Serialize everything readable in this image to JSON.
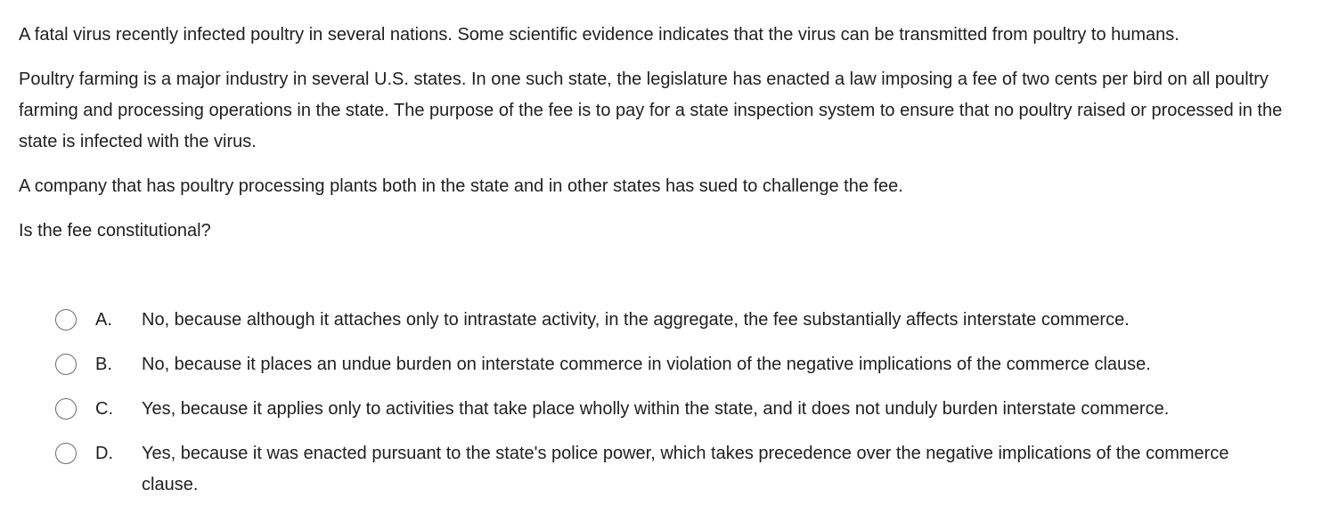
{
  "question": {
    "paragraphs": [
      "A fatal virus recently infected poultry in several nations.  Some scientific evidence indicates that the virus can be transmitted from poultry to humans.",
      "Poultry farming is a major industry in several U.S. states.  In one such state, the legislature has enacted a law imposing a fee of two cents per bird on all poultry farming and processing operations in the state.  The purpose of the fee is to pay for a state inspection system to ensure that no poultry raised or processed in the state is infected with the virus.",
      "A company that has poultry processing plants both in the state and in other states has sued to challenge the fee."
    ],
    "prompt": "Is the fee constitutional?"
  },
  "choices": [
    {
      "letter": "A.",
      "text": "No, because although it attaches only to intrastate activity, in the aggregate, the fee substantially affects interstate commerce.",
      "selected": false
    },
    {
      "letter": "B.",
      "text": "No, because it places an undue burden on interstate commerce in violation of the negative implications of the commerce clause.",
      "selected": false
    },
    {
      "letter": "C.",
      "text": "Yes, because it applies only to activities that take place wholly within the state, and it does not unduly burden interstate commerce.",
      "selected": false
    },
    {
      "letter": "D.",
      "text": "Yes, because it was enacted pursuant to the state's police power, which takes precedence over the negative implications of the commerce clause.",
      "selected": false
    }
  ]
}
